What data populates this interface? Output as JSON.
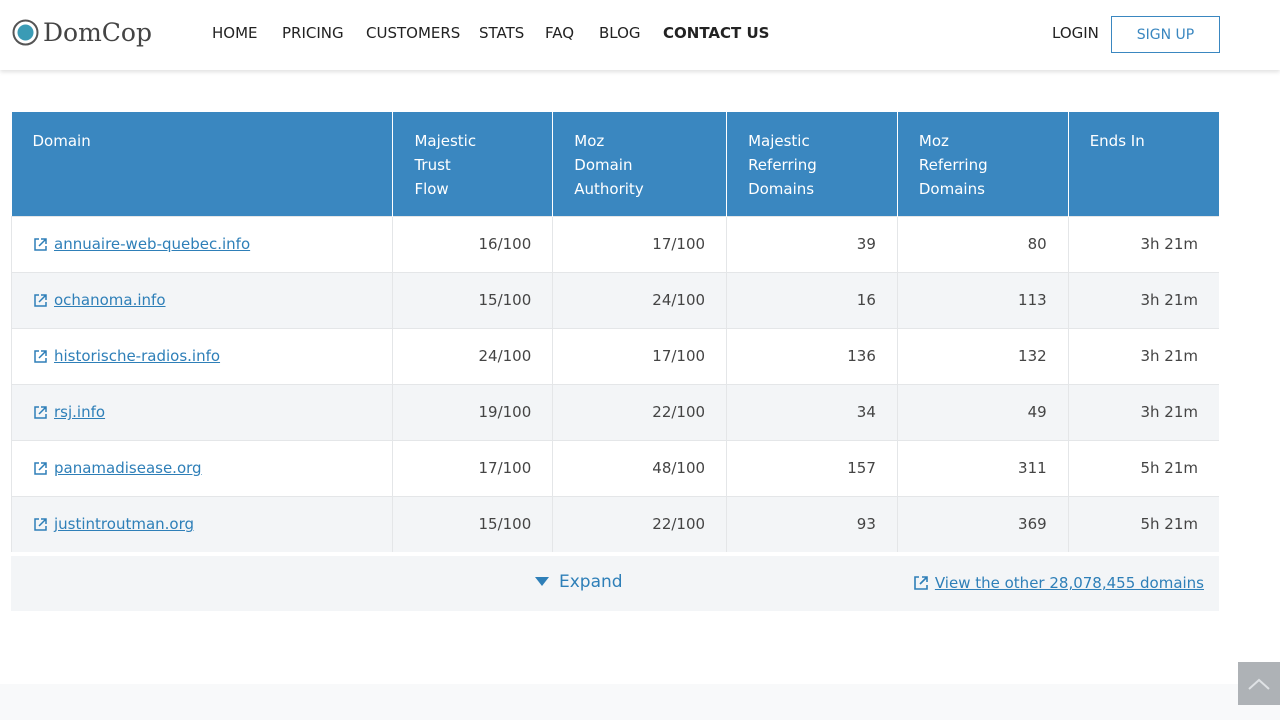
{
  "header": {
    "logo": "DomCop",
    "nav": [
      "HOME",
      "PRICING",
      "CUSTOMERS",
      "STATS",
      "FAQ",
      "BLOG",
      "CONTACT US"
    ],
    "login": "LOGIN",
    "signup": "SIGN UP"
  },
  "table": {
    "columns": [
      "Domain",
      "Majestic Trust Flow",
      "Moz Domain Authority",
      "Majestic Referring Domains",
      "Moz Referring Domains",
      "Ends In"
    ],
    "rows": [
      [
        "annuaire-web-quebec.info",
        "16/100",
        "17/100",
        "39",
        "80",
        "3h 21m"
      ],
      [
        "ochanoma.info",
        "15/100",
        "24/100",
        "16",
        "113",
        "3h 21m"
      ],
      [
        "historische-radios.info",
        "24/100",
        "17/100",
        "136",
        "132",
        "3h 21m"
      ],
      [
        "rsj.info",
        "19/100",
        "22/100",
        "34",
        "49",
        "3h 21m"
      ],
      [
        "panamadisease.org",
        "17/100",
        "48/100",
        "157",
        "311",
        "5h 21m"
      ],
      [
        "justintroutman.org",
        "15/100",
        "22/100",
        "93",
        "369",
        "5h 21m"
      ]
    ],
    "expand": "Expand",
    "view_other": "View the other 28,078,455 domains"
  }
}
